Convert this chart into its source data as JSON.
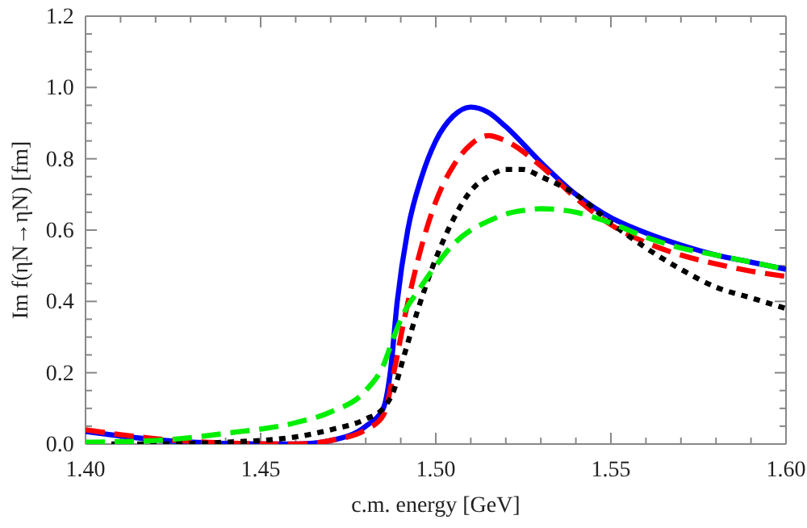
{
  "chart_data": {
    "type": "line",
    "xlabel": "c.m. energy [GeV]",
    "ylabel": "Im f(ηN→ηN)  [fm]",
    "xlim": [
      1.4,
      1.6
    ],
    "ylim": [
      0,
      1.2
    ],
    "xticks": [
      {
        "value": 1.4,
        "label": "1.40"
      },
      {
        "value": 1.41,
        "label": null
      },
      {
        "value": 1.42,
        "label": null
      },
      {
        "value": 1.43,
        "label": null
      },
      {
        "value": 1.44,
        "label": null
      },
      {
        "value": 1.45,
        "label": "1.45"
      },
      {
        "value": 1.46,
        "label": null
      },
      {
        "value": 1.47,
        "label": null
      },
      {
        "value": 1.48,
        "label": null
      },
      {
        "value": 1.49,
        "label": null
      },
      {
        "value": 1.5,
        "label": "1.50"
      },
      {
        "value": 1.51,
        "label": null
      },
      {
        "value": 1.52,
        "label": null
      },
      {
        "value": 1.53,
        "label": null
      },
      {
        "value": 1.54,
        "label": null
      },
      {
        "value": 1.55,
        "label": "1.55"
      },
      {
        "value": 1.56,
        "label": null
      },
      {
        "value": 1.57,
        "label": null
      },
      {
        "value": 1.58,
        "label": null
      },
      {
        "value": 1.59,
        "label": null
      },
      {
        "value": 1.6,
        "label": "1.60"
      }
    ],
    "yticks": [
      {
        "value": 0,
        "label": "0.0"
      },
      {
        "value": 0.05,
        "label": null
      },
      {
        "value": 0.1,
        "label": null
      },
      {
        "value": 0.15,
        "label": null
      },
      {
        "value": 0.2,
        "label": "0.2"
      },
      {
        "value": 0.25,
        "label": null
      },
      {
        "value": 0.3,
        "label": null
      },
      {
        "value": 0.35,
        "label": null
      },
      {
        "value": 0.4,
        "label": "0.4"
      },
      {
        "value": 0.45,
        "label": null
      },
      {
        "value": 0.5,
        "label": null
      },
      {
        "value": 0.55,
        "label": null
      },
      {
        "value": 0.6,
        "label": "0.6"
      },
      {
        "value": 0.65,
        "label": null
      },
      {
        "value": 0.7,
        "label": null
      },
      {
        "value": 0.75,
        "label": null
      },
      {
        "value": 0.8,
        "label": "0.8"
      },
      {
        "value": 0.85,
        "label": null
      },
      {
        "value": 0.9,
        "label": null
      },
      {
        "value": 0.95,
        "label": null
      },
      {
        "value": 1.0,
        "label": "1.0"
      },
      {
        "value": 1.05,
        "label": null
      },
      {
        "value": 1.1,
        "label": null
      },
      {
        "value": 1.15,
        "label": null
      },
      {
        "value": 1.2,
        "label": "1.2"
      }
    ],
    "x": [
      1.4,
      1.42,
      1.44,
      1.46,
      1.47,
      1.48,
      1.485,
      1.488,
      1.491,
      1.495,
      1.5,
      1.505,
      1.51,
      1.515,
      1.52,
      1.525,
      1.53,
      1.54,
      1.55,
      1.56,
      1.57,
      1.58,
      1.59,
      1.6
    ],
    "series": [
      {
        "color": "#0000ff",
        "line_style": "solid",
        "x": [
          1.4,
          1.42,
          1.44,
          1.46,
          1.47,
          1.48,
          1.485,
          1.487,
          1.489,
          1.492,
          1.496,
          1.5,
          1.505,
          1.51,
          1.515,
          1.52,
          1.53,
          1.54,
          1.55,
          1.56,
          1.57,
          1.58,
          1.59,
          1.6
        ],
        "values": [
          0.035,
          0.012,
          0.002,
          0.0,
          0.01,
          0.05,
          0.1,
          0.2,
          0.4,
          0.6,
          0.75,
          0.85,
          0.92,
          0.945,
          0.93,
          0.89,
          0.79,
          0.7,
          0.635,
          0.592,
          0.558,
          0.53,
          0.51,
          0.49
        ]
      },
      {
        "color": "#ff0000",
        "line_style": "dashed",
        "x": [
          1.4,
          1.42,
          1.44,
          1.46,
          1.47,
          1.48,
          1.485,
          1.488,
          1.491,
          1.495,
          1.5,
          1.505,
          1.51,
          1.515,
          1.52,
          1.53,
          1.54,
          1.55,
          1.56,
          1.57,
          1.58,
          1.59,
          1.6
        ],
        "values": [
          0.04,
          0.015,
          0.003,
          0.0,
          0.01,
          0.04,
          0.08,
          0.2,
          0.35,
          0.52,
          0.68,
          0.78,
          0.84,
          0.865,
          0.85,
          0.78,
          0.69,
          0.615,
          0.565,
          0.53,
          0.505,
          0.485,
          0.47
        ]
      },
      {
        "color": "#000000",
        "line_style": "dotted",
        "values": [
          0.0,
          0.0,
          0.005,
          0.02,
          0.04,
          0.07,
          0.1,
          0.15,
          0.25,
          0.38,
          0.52,
          0.63,
          0.71,
          0.75,
          0.77,
          0.77,
          0.75,
          0.7,
          0.62,
          0.55,
          0.49,
          0.44,
          0.41,
          0.38
        ]
      },
      {
        "color": "#00ee00",
        "line_style": "dashed",
        "values": [
          0.005,
          0.01,
          0.03,
          0.06,
          0.09,
          0.15,
          0.22,
          0.3,
          0.37,
          0.43,
          0.5,
          0.56,
          0.6,
          0.625,
          0.645,
          0.655,
          0.66,
          0.65,
          0.62,
          0.58,
          0.55,
          0.53,
          0.51,
          0.49
        ]
      }
    ]
  }
}
